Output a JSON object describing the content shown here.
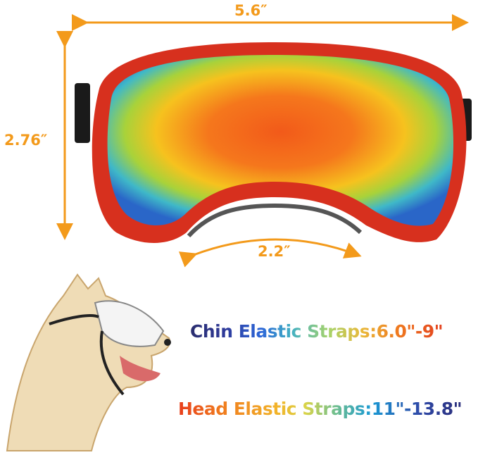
{
  "dimensions": {
    "width": "5.6″",
    "height": "2.76″",
    "nose_bridge": "2.2″"
  },
  "straps": {
    "chin": "Chin Elastic Straps:6.0\"-9\"",
    "head": "Head Elastic Straps:11\"-13.8\""
  },
  "colors": {
    "dimension_orange": "#f39a1b",
    "frame_red": "#d7301e"
  }
}
